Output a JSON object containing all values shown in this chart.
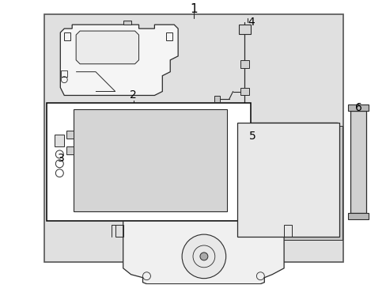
{
  "fig_width": 4.89,
  "fig_height": 3.6,
  "dpi": 100,
  "bg_color": "#ffffff",
  "outer_bg": "#e8e8e8",
  "line_color": "#2a2a2a",
  "label_color": "#000000"
}
